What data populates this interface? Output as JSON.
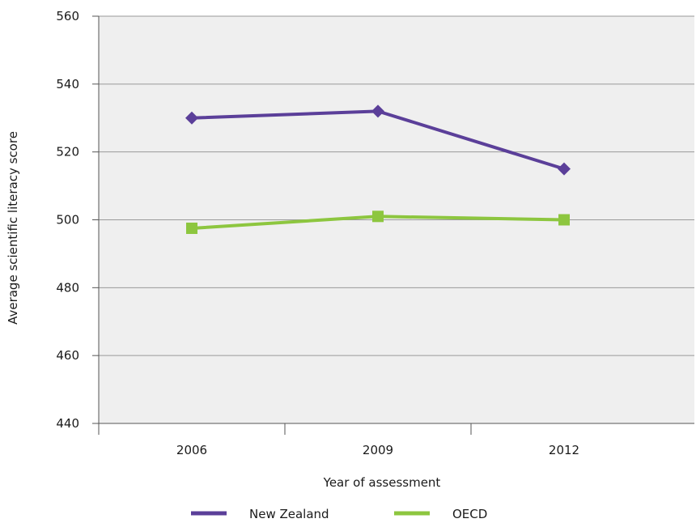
{
  "chart_data": {
    "type": "line",
    "title": "",
    "xlabel": "Year of assessment",
    "ylabel": "Average scientific literacy score",
    "categories": [
      "2006",
      "2009",
      "2012"
    ],
    "ylim": [
      440,
      560
    ],
    "yticks": [
      440,
      460,
      480,
      500,
      520,
      540,
      560
    ],
    "grid": true,
    "legend_position": "bottom",
    "series": [
      {
        "name": "New Zealand",
        "values": [
          530,
          532,
          515
        ],
        "color": "#5b3f99",
        "marker": "diamond"
      },
      {
        "name": "OECD",
        "values": [
          497.5,
          501,
          500
        ],
        "color": "#8dc63f",
        "marker": "square"
      }
    ],
    "plot_background": "#efefef",
    "gridline_color": "#9a9a9a"
  }
}
